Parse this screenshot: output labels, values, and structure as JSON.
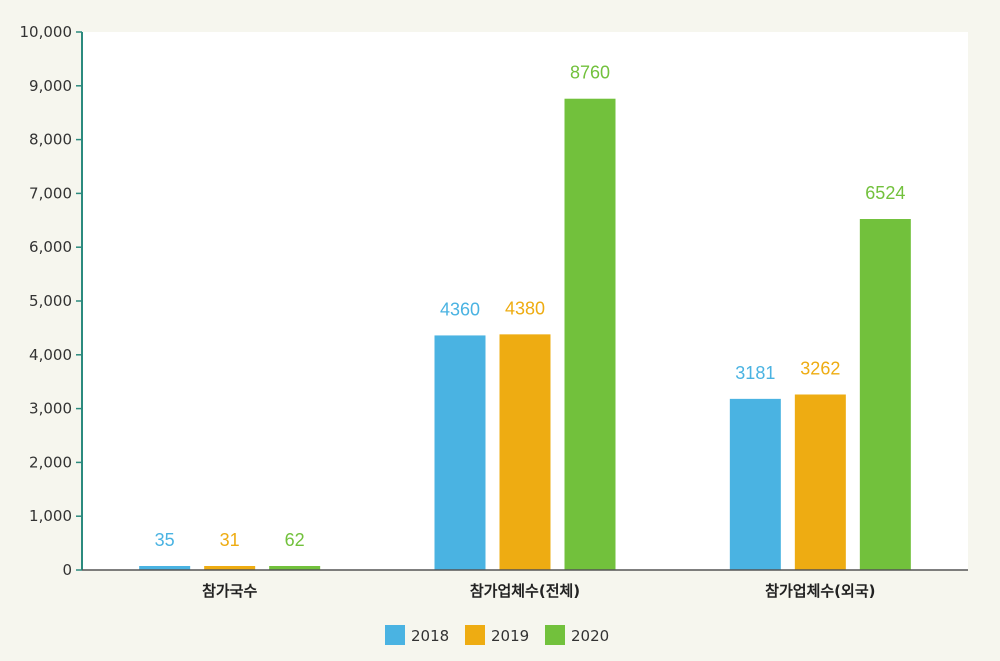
{
  "colors": {
    "background": "#f6f6ee",
    "plot_background": "#ffffff",
    "axis": "#2b8a7e",
    "s2018": "#4ab3e2",
    "s2019": "#eeac12",
    "s2020": "#72c13c"
  },
  "chart_data": {
    "type": "bar",
    "categories": [
      "참가국수",
      "참가업체수(전체)",
      "참가업체수(외국)"
    ],
    "series": [
      {
        "name": "2018",
        "values": [
          35,
          4360,
          3181
        ]
      },
      {
        "name": "2019",
        "values": [
          31,
          4380,
          3262
        ]
      },
      {
        "name": "2020",
        "values": [
          62,
          8760,
          6524
        ]
      }
    ],
    "y_ticks": [
      "0",
      "1,000",
      "2,000",
      "3,000",
      "4,000",
      "5,000",
      "6,000",
      "7,000",
      "8,000",
      "9,000",
      "10,000"
    ],
    "ylim": [
      0,
      10000
    ],
    "grid": false,
    "legend_position": "bottom-center"
  }
}
